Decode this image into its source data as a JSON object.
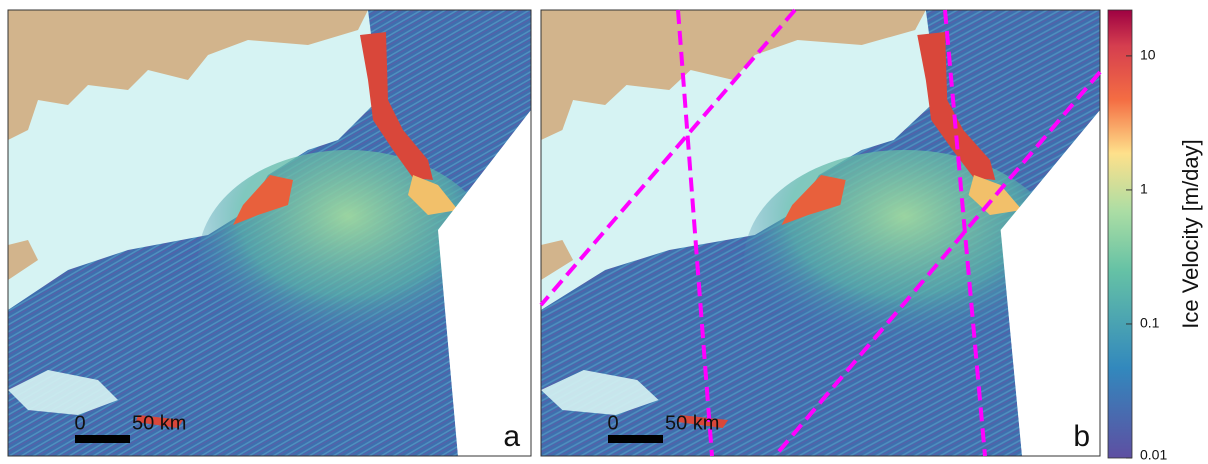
{
  "panels": [
    {
      "label": "a",
      "scale_bar": {
        "start": "0",
        "end": "50 km"
      }
    },
    {
      "label": "b",
      "scale_bar": {
        "start": "0",
        "end": "50 km"
      }
    }
  ],
  "colorbar": {
    "label": "Ice Velocity [m/day]",
    "lim": [
      0.01,
      22
    ],
    "ticks": [
      10,
      1,
      0.1,
      0.01
    ],
    "log": true
  }
}
